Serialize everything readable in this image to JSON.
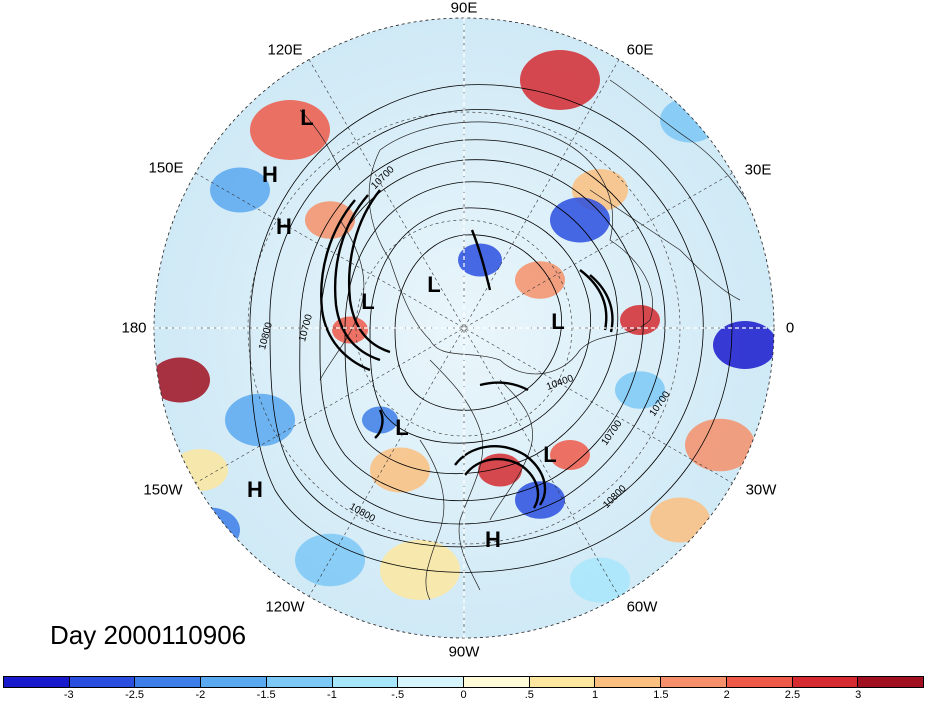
{
  "title": "Day 2000110906",
  "longitude_labels": [
    {
      "text": "90E",
      "angle": 90
    },
    {
      "text": "60E",
      "angle": 60
    },
    {
      "text": "30E",
      "angle": 30
    },
    {
      "text": "0",
      "angle": 0
    },
    {
      "text": "30W",
      "angle": -30
    },
    {
      "text": "60W",
      "angle": -60
    },
    {
      "text": "90W",
      "angle": -90
    },
    {
      "text": "120W",
      "angle": -120
    },
    {
      "text": "150W",
      "angle": -150
    },
    {
      "text": "180",
      "angle": 180
    },
    {
      "text": "150E",
      "angle": 150
    },
    {
      "text": "120E",
      "angle": 120
    }
  ],
  "pressure_centers": [
    {
      "label": "L",
      "id": "low-1"
    },
    {
      "label": "H",
      "id": "high-1"
    },
    {
      "label": "H",
      "id": "high-2"
    },
    {
      "label": "L",
      "id": "low-2"
    },
    {
      "label": "L",
      "id": "low-3"
    },
    {
      "label": "L",
      "id": "low-4"
    },
    {
      "label": "L",
      "id": "low-5"
    },
    {
      "label": "L",
      "id": "low-6"
    },
    {
      "label": "H",
      "id": "high-3"
    },
    {
      "label": "H",
      "id": "high-4"
    }
  ],
  "contour_labels": [
    "10700",
    "10800",
    "10700",
    "10400",
    "10700",
    "10700",
    "10800",
    "10800"
  ],
  "colorbar": {
    "ticks": [
      "-3",
      "-2.5",
      "-2",
      "-1.5",
      "-1",
      "-.5",
      "0",
      ".5",
      "1",
      "1.5",
      "2",
      "2.5",
      "3"
    ],
    "colors": [
      "#1a1acd",
      "#2a4fe0",
      "#3d7ee8",
      "#5aa8f0",
      "#7cc8f6",
      "#a8e6fb",
      "#d6f4fb",
      "#fffbd8",
      "#fde7a0",
      "#fbbf80",
      "#f5906a",
      "#ee5a4a",
      "#d42a30",
      "#a01020"
    ]
  }
}
